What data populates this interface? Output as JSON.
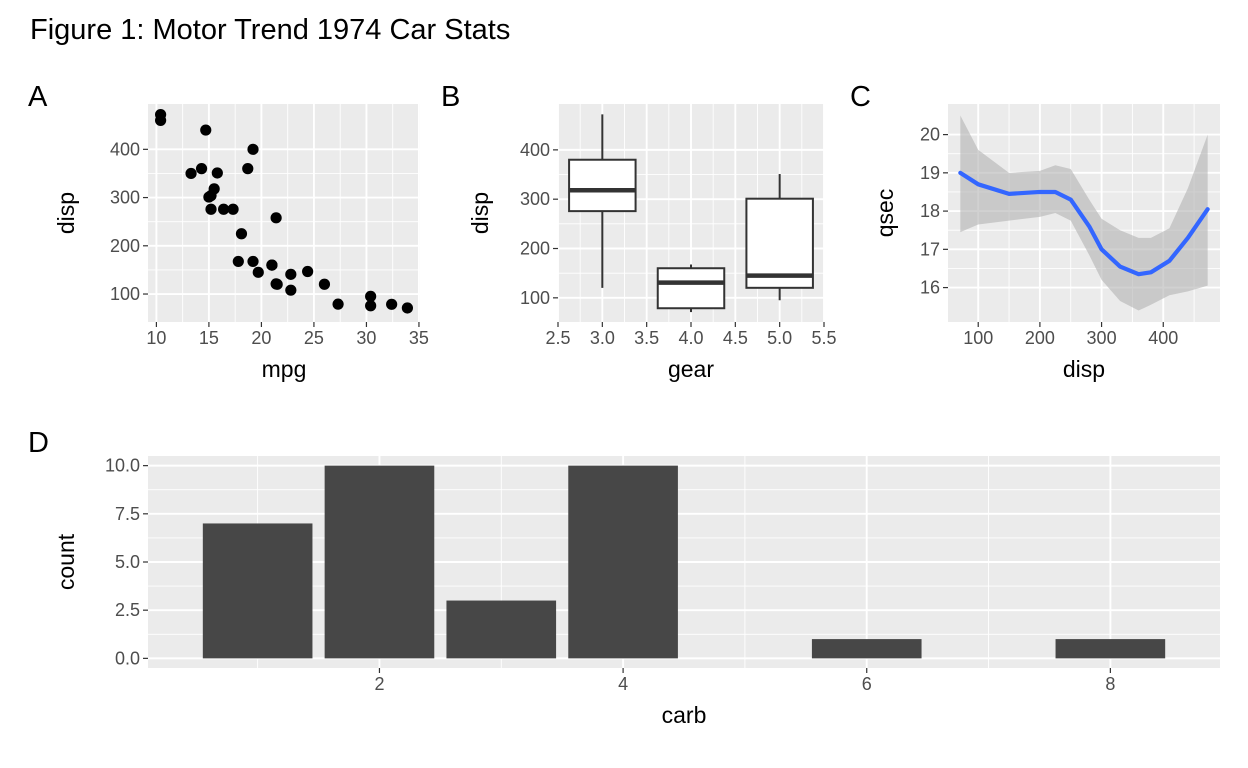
{
  "figure": {
    "title": "Figure 1: Motor Trend 1974 Car Stats"
  },
  "colors": {
    "panel_bg": "#ebebeb",
    "grid_major": "#ffffff",
    "point": "#000000",
    "box_line": "#333333",
    "smooth": "#3366ff",
    "ribbon": "#b3b3b3",
    "bar": "#474747",
    "tick_text": "#4d4d4d"
  },
  "chart_data": [
    {
      "tag": "A",
      "type": "scatter",
      "xlabel": "mpg",
      "ylabel": "disp",
      "xlim": [
        9.2,
        35.1
      ],
      "ylim": [
        42,
        494
      ],
      "xticks": [
        "10",
        "15",
        "20",
        "25",
        "30",
        "35"
      ],
      "yticks": [
        "100",
        "200",
        "300",
        "400"
      ],
      "points": [
        [
          21.0,
          160
        ],
        [
          21.0,
          160
        ],
        [
          22.8,
          108
        ],
        [
          21.4,
          258
        ],
        [
          18.7,
          360
        ],
        [
          18.1,
          225
        ],
        [
          14.3,
          360
        ],
        [
          24.4,
          146.7
        ],
        [
          22.8,
          140.8
        ],
        [
          19.2,
          167.6
        ],
        [
          17.8,
          167.6
        ],
        [
          16.4,
          275.8
        ],
        [
          17.3,
          275.8
        ],
        [
          15.2,
          275.8
        ],
        [
          10.4,
          472
        ],
        [
          10.4,
          460
        ],
        [
          14.7,
          440
        ],
        [
          32.4,
          78.7
        ],
        [
          30.4,
          75.7
        ],
        [
          33.9,
          71.1
        ],
        [
          21.5,
          120.1
        ],
        [
          15.5,
          318
        ],
        [
          15.2,
          304
        ],
        [
          13.3,
          350
        ],
        [
          19.2,
          400
        ],
        [
          27.3,
          79
        ],
        [
          26.0,
          120.3
        ],
        [
          30.4,
          95.1
        ],
        [
          15.8,
          351
        ],
        [
          19.7,
          145
        ],
        [
          15.0,
          301
        ],
        [
          21.4,
          121
        ]
      ]
    },
    {
      "tag": "B",
      "type": "box",
      "xlabel": "gear",
      "ylabel": "disp",
      "xlim": [
        2.5,
        5.5
      ],
      "ylim": [
        51,
        493
      ],
      "xticks": [
        "2.5",
        "3.0",
        "3.5",
        "4.0",
        "4.5",
        "5.0",
        "5.5"
      ],
      "yticks": [
        "100",
        "200",
        "300",
        "400"
      ],
      "boxes": [
        {
          "x": 3,
          "min": 120.1,
          "q1": 275.8,
          "median": 318,
          "q3": 380,
          "max": 472
        },
        {
          "x": 4,
          "min": 71.1,
          "q1": 78.9,
          "median": 130.9,
          "q3": 160,
          "max": 167.6
        },
        {
          "x": 5,
          "min": 95.1,
          "q1": 120.3,
          "median": 145,
          "q3": 301,
          "max": 351
        }
      ]
    },
    {
      "tag": "C",
      "type": "line",
      "xlabel": "disp",
      "ylabel": "qsec",
      "xlim": [
        51,
        492
      ],
      "ylim": [
        15.1,
        20.8
      ],
      "xticks": [
        "100",
        "200",
        "300",
        "400"
      ],
      "yticks": [
        "16",
        "17",
        "18",
        "19",
        "20"
      ],
      "x": [
        71,
        100,
        150,
        200,
        225,
        250,
        280,
        300,
        330,
        360,
        380,
        410,
        440,
        472
      ],
      "y": [
        19.0,
        18.7,
        18.45,
        18.5,
        18.5,
        18.3,
        17.6,
        17.0,
        16.55,
        16.35,
        16.4,
        16.7,
        17.3,
        18.05
      ],
      "lower": [
        17.45,
        17.65,
        17.75,
        17.85,
        17.95,
        17.75,
        16.85,
        16.2,
        15.65,
        15.4,
        15.55,
        15.8,
        15.9,
        16.05
      ],
      "upper": [
        20.5,
        19.6,
        19.0,
        19.05,
        19.2,
        19.1,
        18.3,
        17.8,
        17.5,
        17.3,
        17.3,
        17.55,
        18.6,
        20.0
      ]
    },
    {
      "tag": "D",
      "type": "bar",
      "xlabel": "carb",
      "ylabel": "count",
      "xlim": [
        0.1,
        8.9
      ],
      "ylim": [
        -0.5,
        10.5
      ],
      "xticks": [
        "2",
        "4",
        "6",
        "8"
      ],
      "yticks": [
        "0.0",
        "2.5",
        "5.0",
        "7.5",
        "10.0"
      ],
      "categories": [
        1,
        2,
        3,
        4,
        6,
        8
      ],
      "values": [
        7,
        10,
        3,
        10,
        1,
        1
      ]
    }
  ]
}
